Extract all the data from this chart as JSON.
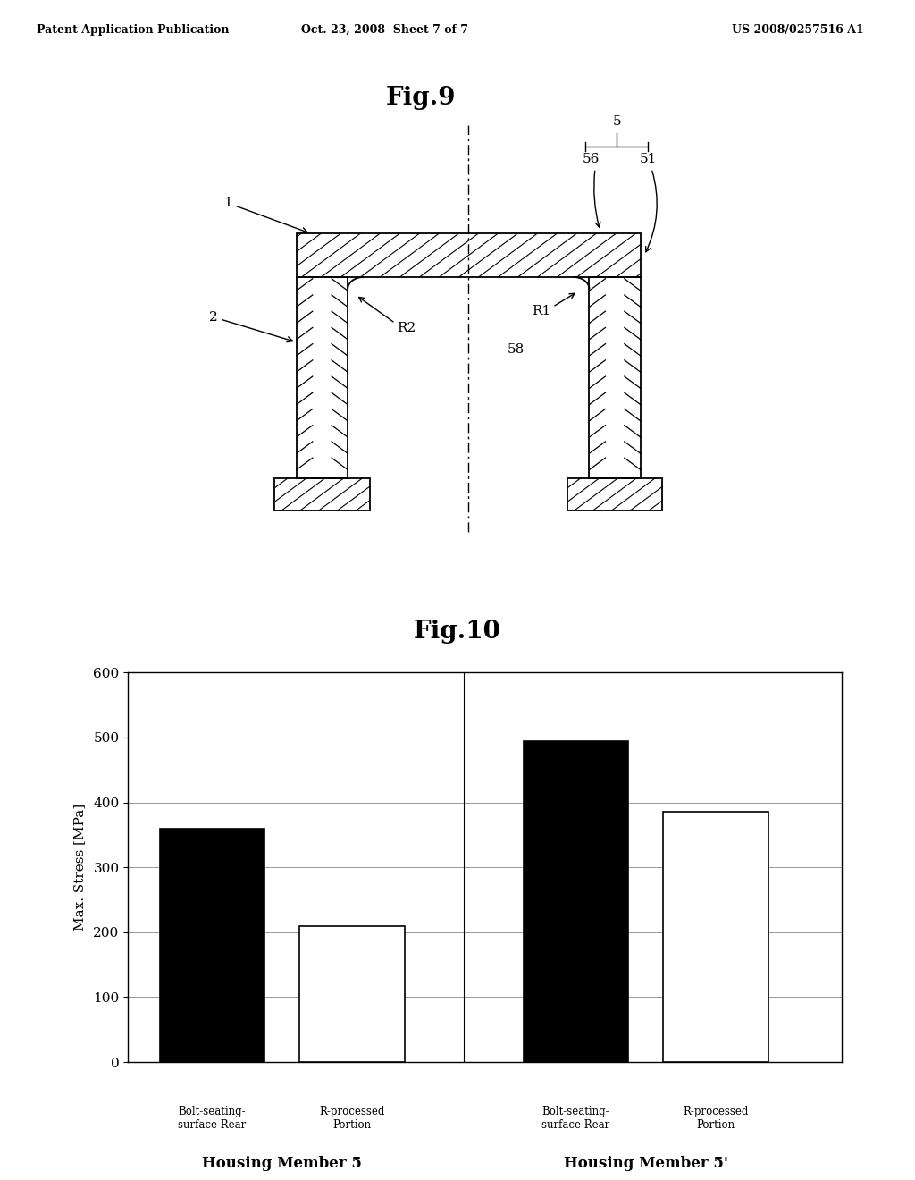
{
  "header_left": "Patent Application Publication",
  "header_middle": "Oct. 23, 2008  Sheet 7 of 7",
  "header_right": "US 2008/0257516 A1",
  "fig9_title": "Fig.9",
  "fig10_title": "Fig.10",
  "bar_values": [
    360,
    210,
    495,
    385
  ],
  "bar_colors": [
    "#000000",
    "#ffffff",
    "#000000",
    "#ffffff"
  ],
  "bar_edge_colors": [
    "#000000",
    "#000000",
    "#000000",
    "#000000"
  ],
  "ylabel": "Max. Stress [MPa]",
  "yticks": [
    0,
    100,
    200,
    300,
    400,
    500,
    600
  ],
  "ylim": [
    0,
    600
  ],
  "group_labels": [
    "Housing Member 5",
    "Housing Member 5'"
  ],
  "bar_sublabels": [
    "Bolt-seating-\nsurface Rear",
    "R-processed\nPortion",
    "Bolt-seating-\nsurface Rear",
    "R-processed\nPortion"
  ],
  "background_color": "#ffffff"
}
